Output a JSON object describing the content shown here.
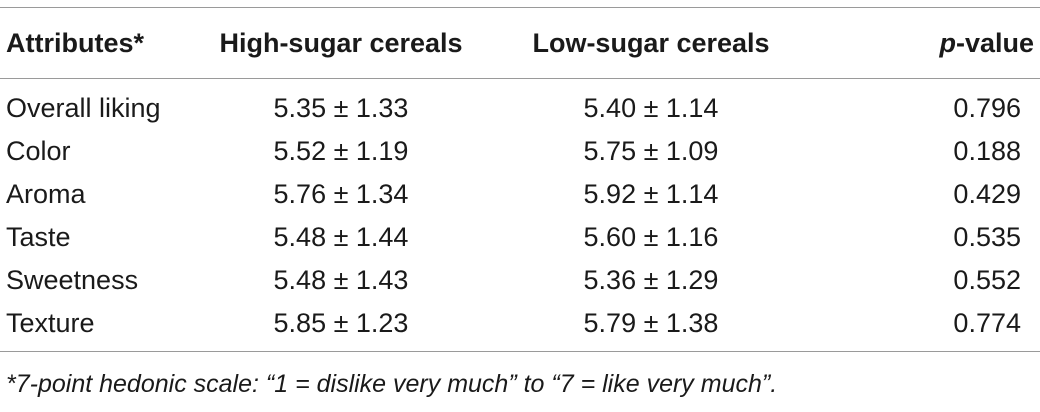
{
  "table": {
    "headers": {
      "attributes": "Attributes*",
      "high_sugar": "High-sugar cereals",
      "low_sugar": "Low-sugar cereals",
      "p_prefix": "p",
      "p_suffix": "-value"
    },
    "rows": [
      {
        "attribute": "Overall liking",
        "high": "5.35 ± 1.33",
        "low": "5.40 ± 1.14",
        "p": "0.796"
      },
      {
        "attribute": "Color",
        "high": "5.52 ± 1.19",
        "low": "5.75 ± 1.09",
        "p": "0.188"
      },
      {
        "attribute": "Aroma",
        "high": "5.76 ± 1.34",
        "low": "5.92 ± 1.14",
        "p": "0.429"
      },
      {
        "attribute": "Taste",
        "high": "5.48 ± 1.44",
        "low": "5.60 ± 1.16",
        "p": "0.535"
      },
      {
        "attribute": "Sweetness",
        "high": "5.48 ± 1.43",
        "low": "5.36 ± 1.29",
        "p": "0.552"
      },
      {
        "attribute": "Texture",
        "high": "5.85 ± 1.23",
        "low": "5.79 ± 1.38",
        "p": "0.774"
      }
    ]
  },
  "footnote": "*7-point hedonic scale: “1 = dislike very much” to “7 = like very much”."
}
